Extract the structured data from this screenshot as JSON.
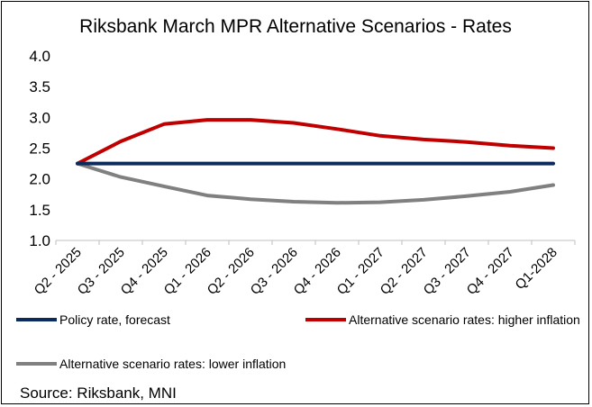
{
  "chart_data": {
    "type": "line",
    "title": "Riksbank March MPR Alternative Scenarios - Rates",
    "xlabel": "",
    "ylabel": "",
    "ylim": [
      1.0,
      4.0
    ],
    "yticks": [
      "1.0",
      "1.5",
      "2.0",
      "2.5",
      "3.0",
      "3.5",
      "4.0"
    ],
    "categories": [
      "Q2 - 2025",
      "Q3 - 2025",
      "Q4 - 2025",
      "Q1 - 2026",
      "Q2 - 2026",
      "Q3 - 2026",
      "Q4 - 2026",
      "Q1 - 2027",
      "Q2 - 2027",
      "Q3 - 2027",
      "Q4 - 2027",
      "Q1-2028"
    ],
    "series": [
      {
        "name": "Policy rate, forecast",
        "color": "#0d2a5c",
        "values": [
          2.25,
          2.25,
          2.25,
          2.25,
          2.25,
          2.25,
          2.25,
          2.25,
          2.25,
          2.25,
          2.25,
          2.25
        ]
      },
      {
        "name": "Alternative scenario rates: higher inflation",
        "color": "#c00000",
        "values": [
          2.25,
          2.61,
          2.89,
          2.96,
          2.96,
          2.91,
          2.81,
          2.7,
          2.64,
          2.6,
          2.54,
          2.5
        ]
      },
      {
        "name": "Alternative scenario rates: lower inflation",
        "color": "#808080",
        "values": [
          2.25,
          2.03,
          1.88,
          1.73,
          1.67,
          1.63,
          1.61,
          1.62,
          1.66,
          1.72,
          1.79,
          1.9
        ]
      }
    ],
    "legend_position": "bottom",
    "source": "Source: Riksbank, MNI"
  }
}
